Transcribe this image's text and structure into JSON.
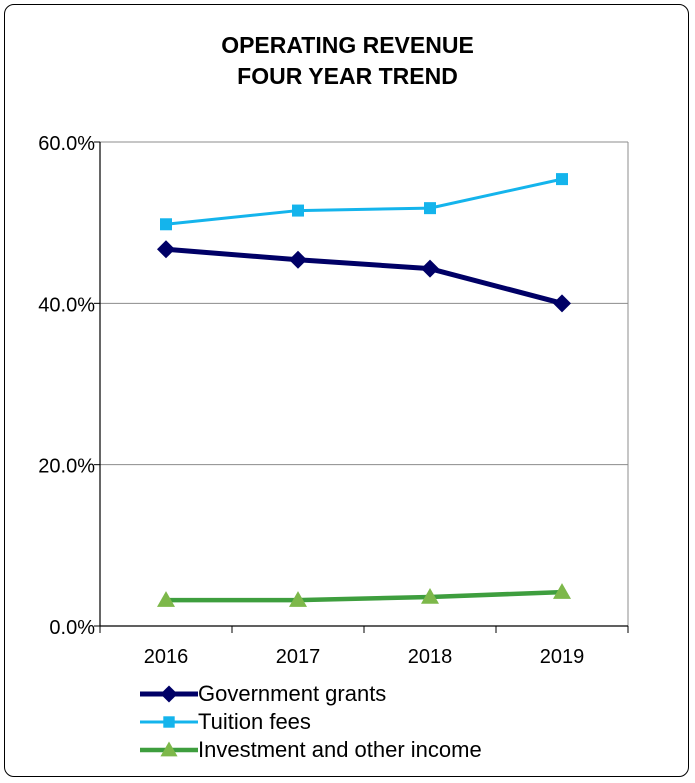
{
  "chart_data": {
    "type": "line",
    "title": [
      "OPERATING REVENUE",
      "FOUR YEAR TREND"
    ],
    "xlabel": "",
    "ylabel": "",
    "categories": [
      "2016",
      "2017",
      "2018",
      "2019"
    ],
    "ylim": [
      0,
      60
    ],
    "yticks": [
      0,
      20,
      40,
      60
    ],
    "ytick_labels": [
      "0.0%",
      "20.0%",
      "40.0%",
      "60.0%"
    ],
    "grid": true,
    "legend_position": "bottom",
    "series": [
      {
        "name": "Government grants",
        "values": [
          46.7,
          45.4,
          44.3,
          40.0
        ],
        "color": "#000066",
        "marker": "diamond"
      },
      {
        "name": "Tuition fees",
        "values": [
          49.8,
          51.5,
          51.8,
          55.4
        ],
        "color": "#14b4ec",
        "marker": "square"
      },
      {
        "name": "Investment and other income",
        "values": [
          3.2,
          3.2,
          3.6,
          4.2
        ],
        "color": "#3e9e3e",
        "marker_color": "#7db84a",
        "marker": "triangle"
      }
    ]
  }
}
